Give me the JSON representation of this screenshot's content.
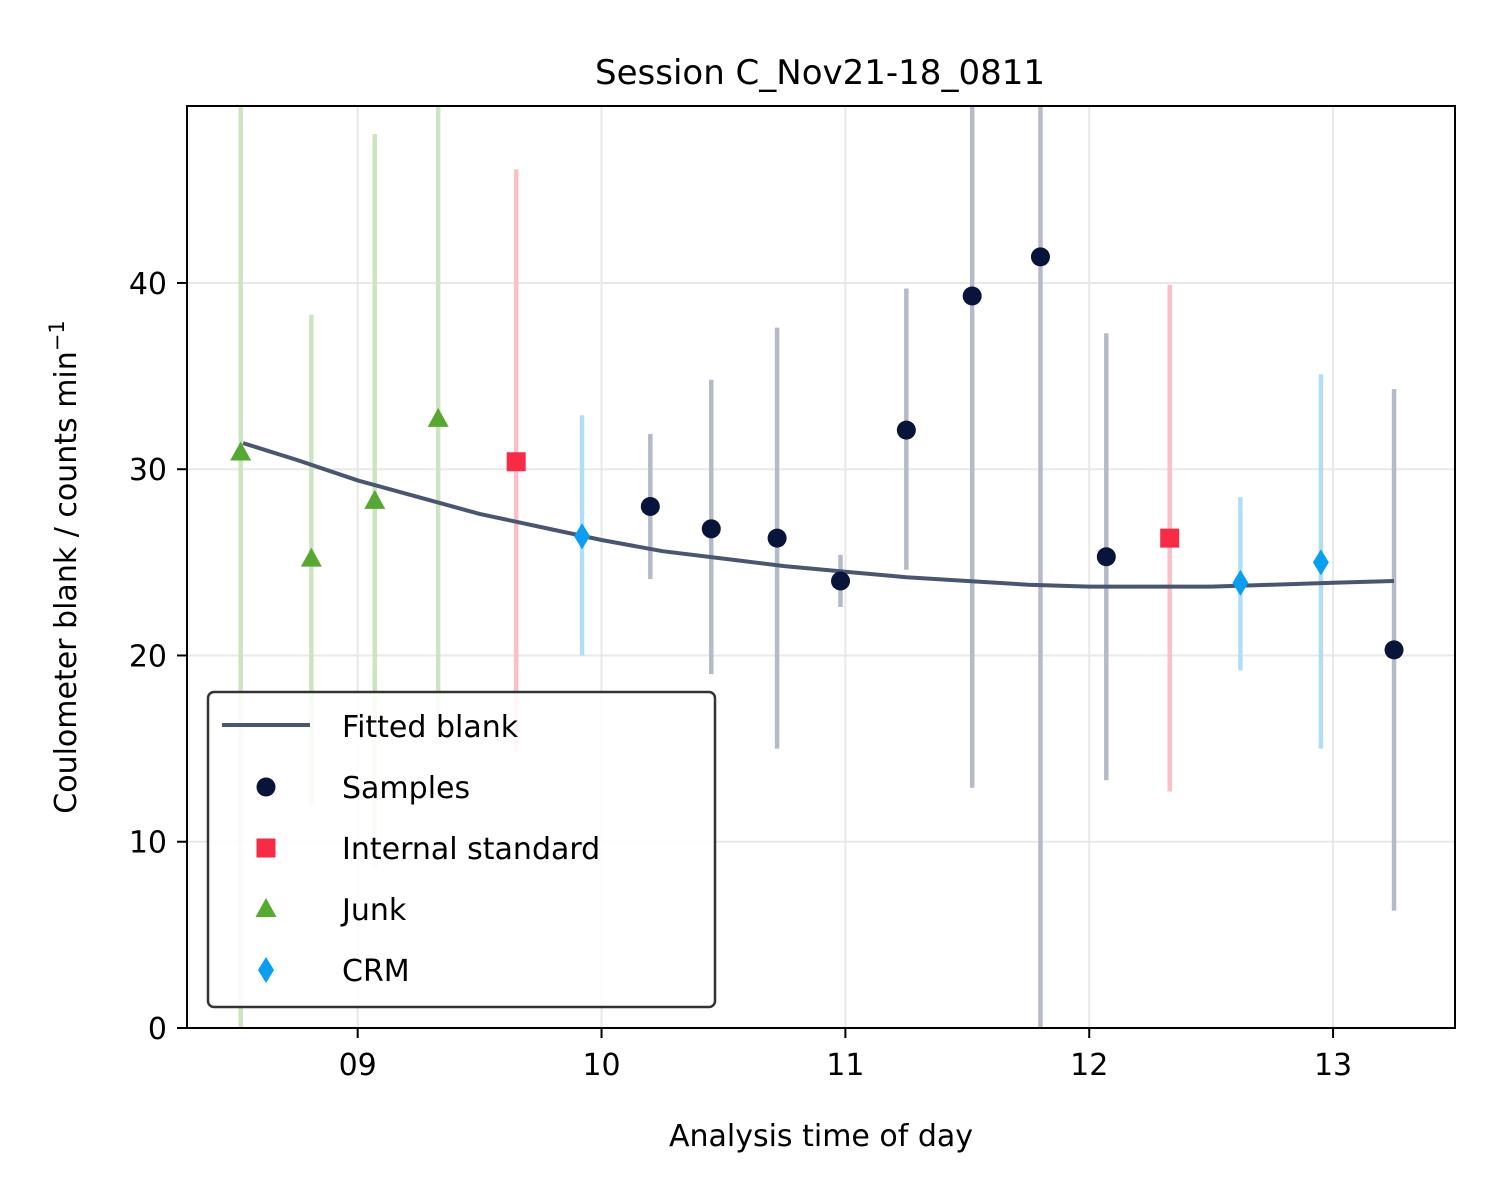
{
  "chart_data": {
    "type": "scatter",
    "title": "Session C_Nov21-18_0811",
    "xlabel": "Analysis time of day",
    "ylabel_main": "Coulometer blank / counts min",
    "ylabel_sup": "−1",
    "xlim": [
      8.3,
      13.5
    ],
    "ylim": [
      0,
      49.5
    ],
    "x_ticks": [
      {
        "value": 9,
        "label": "09"
      },
      {
        "value": 10,
        "label": "10"
      },
      {
        "value": 11,
        "label": "11"
      },
      {
        "value": 12,
        "label": "12"
      },
      {
        "value": 13,
        "label": "13"
      }
    ],
    "y_ticks": [
      {
        "value": 0,
        "label": "0"
      },
      {
        "value": 10,
        "label": "10"
      },
      {
        "value": 20,
        "label": "20"
      },
      {
        "value": 30,
        "label": "30"
      },
      {
        "value": 40,
        "label": "40"
      }
    ],
    "grid": true,
    "legend_position": "lower-left",
    "fitted_blank": {
      "name": "Fitted blank",
      "color": "#4a5570",
      "x": [
        8.53,
        8.75,
        9.0,
        9.25,
        9.5,
        9.75,
        10.0,
        10.25,
        10.5,
        10.75,
        11.0,
        11.25,
        11.5,
        11.75,
        12.0,
        12.25,
        12.5,
        12.75,
        13.0,
        13.25
      ],
      "y": [
        31.4,
        30.5,
        29.4,
        28.5,
        27.6,
        26.9,
        26.2,
        25.6,
        25.2,
        24.8,
        24.5,
        24.2,
        24.0,
        23.8,
        23.7,
        23.7,
        23.7,
        23.8,
        23.9,
        24.0
      ]
    },
    "series": [
      {
        "name": "Samples",
        "marker": "circle",
        "color": "#08143a",
        "errcolor": "#b5bac8",
        "points": [
          {
            "x": 10.2,
            "y": 28.0,
            "lo": 24.1,
            "hi": 31.9
          },
          {
            "x": 10.45,
            "y": 26.8,
            "lo": 19.0,
            "hi": 34.8
          },
          {
            "x": 10.72,
            "y": 26.3,
            "lo": 15.0,
            "hi": 37.6
          },
          {
            "x": 10.98,
            "y": 24.0,
            "lo": 22.6,
            "hi": 25.4
          },
          {
            "x": 11.25,
            "y": 32.1,
            "lo": 24.6,
            "hi": 39.7
          },
          {
            "x": 11.52,
            "y": 39.3,
            "lo": 12.9,
            "hi": 49.5
          },
          {
            "x": 11.8,
            "y": 41.4,
            "lo": 0,
            "hi": 49.5
          },
          {
            "x": 12.07,
            "y": 25.3,
            "lo": 13.3,
            "hi": 37.3
          },
          {
            "x": 13.25,
            "y": 20.3,
            "lo": 6.3,
            "hi": 34.3
          }
        ]
      },
      {
        "name": "Internal standard",
        "marker": "square",
        "color": "#f72b45",
        "errcolor": "#fcbfc6",
        "points": [
          {
            "x": 9.65,
            "y": 30.4,
            "lo": 14.8,
            "hi": 46.1
          },
          {
            "x": 12.33,
            "y": 26.3,
            "lo": 12.7,
            "hi": 39.9
          }
        ]
      },
      {
        "name": "Junk",
        "marker": "triangle",
        "color": "#56a832",
        "errcolor": "#cce5c0",
        "points": [
          {
            "x": 8.52,
            "y": 30.9,
            "lo": 0,
            "hi": 49.5
          },
          {
            "x": 8.81,
            "y": 25.2,
            "lo": 12.0,
            "hi": 38.3
          },
          {
            "x": 9.07,
            "y": 28.3,
            "lo": 8.6,
            "hi": 48.0
          },
          {
            "x": 9.33,
            "y": 32.7,
            "lo": 15.2,
            "hi": 49.5
          }
        ]
      },
      {
        "name": "CRM",
        "marker": "diamond",
        "color": "#099ef0",
        "errcolor": "#b0def7",
        "points": [
          {
            "x": 9.92,
            "y": 26.4,
            "lo": 20.0,
            "hi": 32.9
          },
          {
            "x": 12.62,
            "y": 23.9,
            "lo": 19.2,
            "hi": 28.5
          },
          {
            "x": 12.95,
            "y": 25.0,
            "lo": 15.0,
            "hi": 35.1
          }
        ]
      }
    ]
  }
}
